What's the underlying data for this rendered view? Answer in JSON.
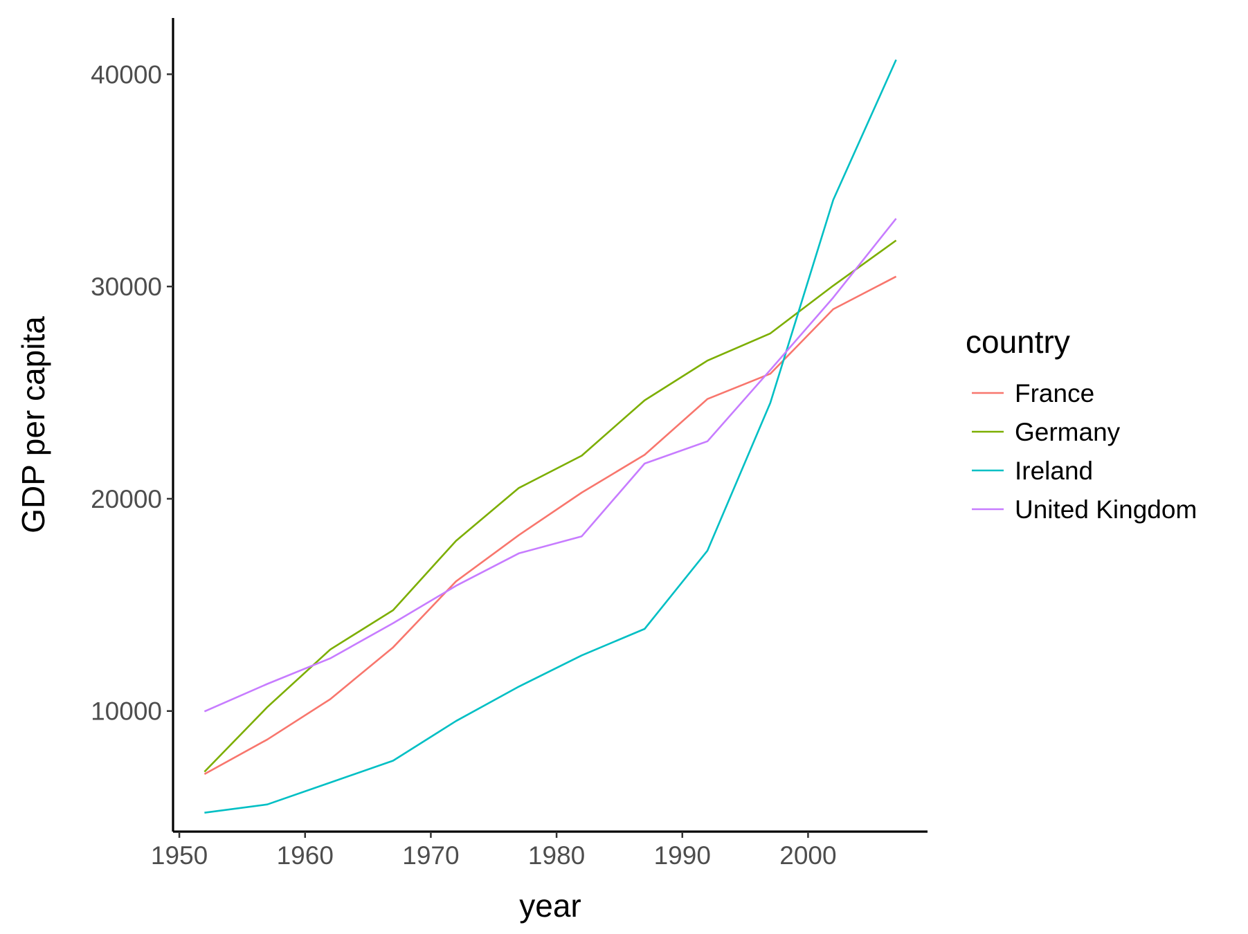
{
  "chart_data": {
    "type": "line",
    "title": "",
    "xlabel": "year",
    "ylabel": "GDP per capita",
    "x": [
      1952,
      1957,
      1962,
      1967,
      1972,
      1977,
      1982,
      1987,
      1992,
      1997,
      2002,
      2007
    ],
    "xlim": [
      1949.5,
      2009.5
    ],
    "ylim": [
      4320,
      42650
    ],
    "x_ticks": [
      1950,
      1960,
      1970,
      1980,
      1990,
      2000
    ],
    "y_ticks": [
      10000,
      20000,
      30000,
      40000
    ],
    "grid": false,
    "legend_title": "country",
    "legend_position": "right",
    "series": [
      {
        "name": "France",
        "color": "#F8766D",
        "values": [
          7030,
          8660,
          10560,
          13000,
          16110,
          18290,
          20290,
          22070,
          24700,
          25890,
          28930,
          30470
        ]
      },
      {
        "name": "Germany",
        "color": "#7CAE00",
        "values": [
          7140,
          10190,
          12900,
          14750,
          18020,
          20510,
          22030,
          24640,
          26510,
          27790,
          30040,
          32170
        ]
      },
      {
        "name": "Ireland",
        "color": "#00BFC4",
        "values": [
          5210,
          5600,
          6630,
          7660,
          9530,
          11150,
          12620,
          13870,
          17560,
          24520,
          34080,
          40680
        ]
      },
      {
        "name": "United Kingdom",
        "color": "#C77CFF",
        "values": [
          9980,
          11280,
          12480,
          14140,
          15900,
          17430,
          18230,
          21660,
          22710,
          26070,
          29480,
          33200
        ]
      }
    ]
  }
}
